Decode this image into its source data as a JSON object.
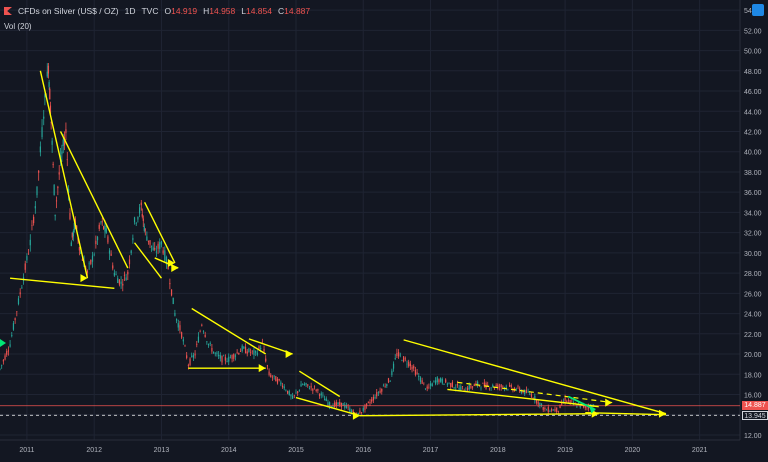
{
  "header": {
    "symbol": "CFDs on Silver (US$ / OZ)",
    "interval": "1D",
    "source": "TVC",
    "ohlc": [
      {
        "label": "O",
        "value": "14.919"
      },
      {
        "label": "H",
        "value": "14.958"
      },
      {
        "label": "L",
        "value": "14.854"
      },
      {
        "label": "C",
        "value": "14.887"
      }
    ],
    "volume_label": "Vol (20)"
  },
  "price_tags": {
    "last_price": "14.887",
    "reference_price": "13.945"
  },
  "colors": {
    "background": "#131722",
    "grid": "#1f2433",
    "up": "#26a69a",
    "down": "#ef5350",
    "annotation": "#ffff00",
    "annotation_green": "#00e676",
    "last_price_line": "#ef5350",
    "reference_line": "#ffffff"
  },
  "chart_data": {
    "type": "line",
    "xlabel": "",
    "ylabel": "",
    "ylim": [
      11.5,
      55
    ],
    "yticks": [
      12,
      14,
      16,
      18,
      20,
      22,
      24,
      26,
      28,
      30,
      32,
      34,
      36,
      38,
      40,
      42,
      44,
      46,
      48,
      50,
      52,
      54
    ],
    "xlim": [
      2010.6,
      2021.6
    ],
    "xticks": [
      "2011",
      "2012",
      "2013",
      "2014",
      "2015",
      "2016",
      "2017",
      "2018",
      "2019",
      "2020",
      "2021"
    ],
    "grid": true,
    "series": [
      {
        "x": [
          2010.6,
          2010.75,
          2010.9,
          2011.05,
          2011.15,
          2011.25,
          2011.32,
          2011.36,
          2011.42,
          2011.5,
          2011.58,
          2011.66,
          2011.72,
          2011.8,
          2011.9,
          2012.0,
          2012.1,
          2012.18,
          2012.3,
          2012.4,
          2012.5,
          2012.6,
          2012.7,
          2012.76,
          2012.9,
          2013.0,
          2013.1,
          2013.2,
          2013.3,
          2013.4,
          2013.5,
          2013.6,
          2013.7,
          2013.8,
          2013.9,
          2014.0,
          2014.2,
          2014.4,
          2014.5,
          2014.6,
          2014.8,
          2014.95,
          2015.1,
          2015.3,
          2015.5,
          2015.7,
          2015.9,
          2016.0,
          2016.2,
          2016.4,
          2016.5,
          2016.6,
          2016.7,
          2016.8,
          2016.95,
          2017.1,
          2017.3,
          2017.5,
          2017.7,
          2017.9,
          2018.1,
          2018.3,
          2018.5,
          2018.7,
          2018.9,
          2019.0,
          2019.15,
          2019.3,
          2019.45
        ],
        "values": [
          18.5,
          21,
          26,
          31,
          36,
          44,
          48.5,
          43,
          34,
          39,
          42,
          31,
          33,
          30,
          28,
          30,
          33,
          32,
          28,
          27,
          28,
          33,
          34.5,
          32,
          30,
          31,
          28.5,
          24,
          22,
          19,
          20,
          23,
          21,
          20,
          19.5,
          19.5,
          20.5,
          20,
          21,
          18,
          17,
          15.6,
          17,
          16.5,
          15,
          15,
          14,
          14.5,
          16,
          17.5,
          20,
          19.5,
          19,
          18,
          16.5,
          17.5,
          17,
          16.5,
          17,
          16.8,
          16.8,
          16.5,
          16,
          14.5,
          14.5,
          15.5,
          15,
          14.8,
          14.9
        ]
      }
    ],
    "annotations": "yellow trend lines and arrows",
    "last_price": 14.887,
    "reference_price": 13.945
  }
}
